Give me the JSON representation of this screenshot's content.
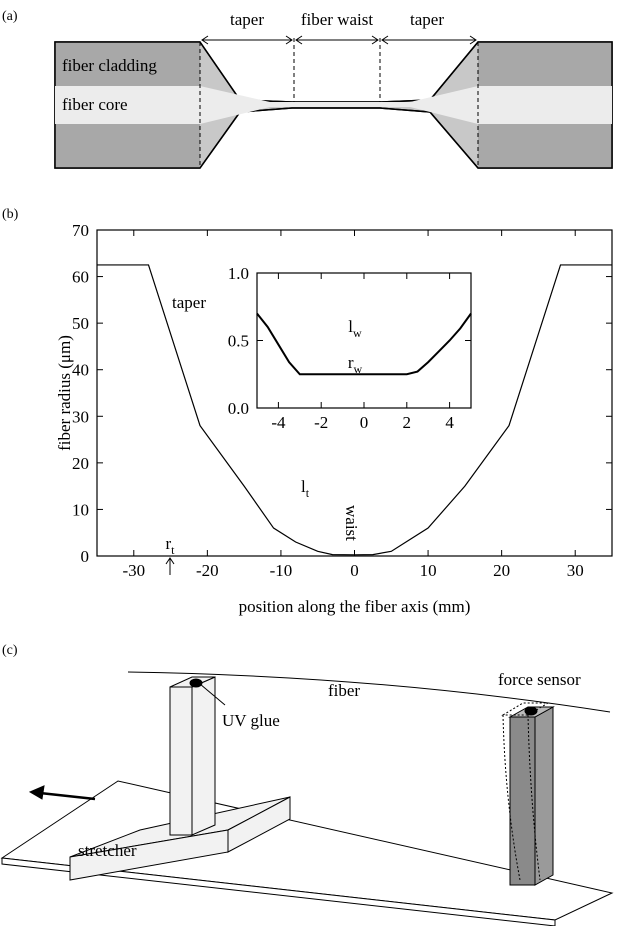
{
  "panel_labels": [
    "(a)",
    "(b)",
    "(c)"
  ],
  "panel_a": {
    "taper_left": "taper",
    "waist": "fiber waist",
    "taper_right": "taper",
    "cladding": "fiber cladding",
    "core": "fiber core"
  },
  "chart_data": [
    {
      "type": "line",
      "ylabel": "fiber radius (μm)",
      "xlabel": "position along the fiber axis (mm)",
      "x": [
        -35,
        -28,
        -21,
        -15,
        -11,
        -8,
        -5,
        -3,
        0,
        2.5,
        5,
        7,
        10,
        15,
        21,
        28,
        35
      ],
      "series": [
        {
          "color": "#000000",
          "values": [
            62.5,
            62.5,
            28,
            15,
            6,
            3,
            1,
            0.3,
            0.25,
            0.3,
            1,
            3,
            6,
            15,
            28,
            62.5,
            62.5
          ]
        }
      ],
      "xlim": [
        -35,
        35
      ],
      "ylim": [
        0,
        70
      ],
      "xticks": [
        -30,
        -20,
        -10,
        0,
        10,
        20,
        30
      ],
      "yticks": [
        0,
        10,
        20,
        30,
        40,
        50,
        60,
        70
      ],
      "annotations": {
        "taper": "taper",
        "waist": "waist",
        "lt": {
          "text": "l",
          "sub": "t"
        },
        "rt": {
          "text": "r",
          "sub": "t"
        }
      }
    },
    {
      "type": "line",
      "x": [
        -5,
        -4.5,
        -4,
        -3.5,
        -3,
        0,
        2,
        2.5,
        3,
        3.5,
        4,
        4.5,
        5
      ],
      "series": [
        {
          "color": "#000000",
          "values": [
            0.7,
            0.6,
            0.47,
            0.34,
            0.25,
            0.25,
            0.25,
            0.27,
            0.34,
            0.42,
            0.5,
            0.59,
            0.7
          ]
        }
      ],
      "xlim": [
        -5,
        5
      ],
      "ylim": [
        0,
        1
      ],
      "xticks": [
        -4,
        -2,
        0,
        2,
        4
      ],
      "yticks": [
        {
          "value": 0,
          "label": "0.0"
        },
        {
          "value": 0.5,
          "label": "0.5"
        },
        {
          "value": 1,
          "label": "1.0"
        }
      ],
      "annotations": {
        "lw": {
          "text": "l",
          "sub": "w"
        },
        "rw": {
          "text": "r",
          "sub": "w"
        }
      }
    }
  ],
  "panel_c": {
    "fiber": "fiber",
    "glue": "UV glue",
    "sensor": "force sensor",
    "stretcher": "stretcher"
  }
}
